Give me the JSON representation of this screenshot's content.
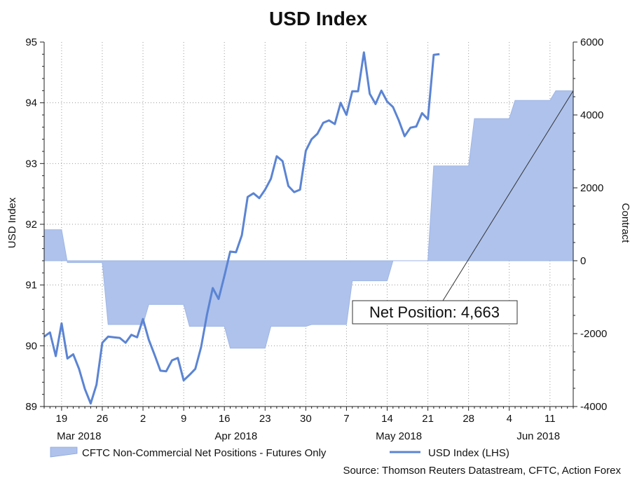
{
  "chart_data": {
    "type": "line",
    "title": "USD Index",
    "ylabel_left": "USD Index",
    "ylabel_right": "Contract",
    "ylim_left": [
      89,
      95
    ],
    "ylim_right": [
      -4000,
      6000
    ],
    "left_ticks": [
      "95",
      "94",
      "93",
      "92",
      "91",
      "90",
      "89"
    ],
    "right_ticks": [
      "6000",
      "4000",
      "2000",
      "0",
      "-2000",
      "-4000"
    ],
    "x_start": "2018-03-16",
    "x_end": "2018-06-15",
    "x_tick_labels": [
      {
        "label": "19",
        "date": "2018-03-19"
      },
      {
        "label": "26",
        "date": "2018-03-26"
      },
      {
        "label": "2",
        "date": "2018-04-02"
      },
      {
        "label": "9",
        "date": "2018-04-09"
      },
      {
        "label": "16",
        "date": "2018-04-16"
      },
      {
        "label": "23",
        "date": "2018-04-23"
      },
      {
        "label": "30",
        "date": "2018-04-30"
      },
      {
        "label": "7",
        "date": "2018-05-07"
      },
      {
        "label": "14",
        "date": "2018-05-14"
      },
      {
        "label": "21",
        "date": "2018-05-21"
      },
      {
        "label": "28",
        "date": "2018-05-28"
      },
      {
        "label": "4",
        "date": "2018-06-04"
      },
      {
        "label": "11",
        "date": "2018-06-11"
      }
    ],
    "month_labels": [
      {
        "label": "Mar 2018",
        "date": "2018-03-22"
      },
      {
        "label": "Apr 2018",
        "date": "2018-04-18"
      },
      {
        "label": "May 2018",
        "date": "2018-05-16"
      },
      {
        "label": "Jun 2018",
        "date": "2018-06-09"
      }
    ],
    "series": [
      {
        "name": "CFTC Non-Commercial Net Positions - Futures Only",
        "axis": "right",
        "kind": "step-area",
        "color": "#aec2ec",
        "points": [
          [
            "2018-03-16",
            850
          ],
          [
            "2018-03-19",
            850
          ],
          [
            "2018-03-20",
            -50
          ],
          [
            "2018-03-26",
            -50
          ],
          [
            "2018-03-27",
            -1750
          ],
          [
            "2018-04-02",
            -1750
          ],
          [
            "2018-04-03",
            -1200
          ],
          [
            "2018-04-09",
            -1200
          ],
          [
            "2018-04-10",
            -1800
          ],
          [
            "2018-04-16",
            -1800
          ],
          [
            "2018-04-17",
            -2400
          ],
          [
            "2018-04-23",
            -2400
          ],
          [
            "2018-04-24",
            -1800
          ],
          [
            "2018-04-30",
            -1800
          ],
          [
            "2018-05-01",
            -1750
          ],
          [
            "2018-05-07",
            -1750
          ],
          [
            "2018-05-08",
            -550
          ],
          [
            "2018-05-14",
            -550
          ],
          [
            "2018-05-15",
            0
          ],
          [
            "2018-05-21",
            0
          ],
          [
            "2018-05-22",
            2600
          ],
          [
            "2018-05-28",
            2600
          ],
          [
            "2018-05-29",
            3900
          ],
          [
            "2018-06-04",
            3900
          ],
          [
            "2018-06-05",
            4400
          ],
          [
            "2018-06-11",
            4400
          ],
          [
            "2018-06-12",
            4663
          ],
          [
            "2018-06-15",
            4663
          ]
        ]
      },
      {
        "name": "USD Index (LHS)",
        "axis": "left",
        "kind": "line",
        "color": "#5b84d3",
        "points": [
          [
            "2018-03-16",
            90.15
          ],
          [
            "2018-03-17",
            90.22
          ],
          [
            "2018-03-18",
            89.83
          ],
          [
            "2018-03-19",
            90.37
          ],
          [
            "2018-03-20",
            89.79
          ],
          [
            "2018-03-21",
            89.86
          ],
          [
            "2018-03-22",
            89.62
          ],
          [
            "2018-03-23",
            89.29
          ],
          [
            "2018-03-24",
            89.05
          ],
          [
            "2018-03-25",
            89.36
          ],
          [
            "2018-03-26",
            90.05
          ],
          [
            "2018-03-27",
            90.15
          ],
          [
            "2018-03-28",
            90.14
          ],
          [
            "2018-03-29",
            90.13
          ],
          [
            "2018-03-30",
            90.05
          ],
          [
            "2018-03-31",
            90.18
          ],
          [
            "2018-04-01",
            90.14
          ],
          [
            "2018-04-02",
            90.44
          ],
          [
            "2018-04-03",
            90.1
          ],
          [
            "2018-04-04",
            89.85
          ],
          [
            "2018-04-05",
            89.59
          ],
          [
            "2018-04-06",
            89.58
          ],
          [
            "2018-04-07",
            89.76
          ],
          [
            "2018-04-08",
            89.8
          ],
          [
            "2018-04-09",
            89.43
          ],
          [
            "2018-04-10",
            89.52
          ],
          [
            "2018-04-11",
            89.62
          ],
          [
            "2018-04-12",
            89.98
          ],
          [
            "2018-04-13",
            90.51
          ],
          [
            "2018-04-14",
            90.95
          ],
          [
            "2018-04-15",
            90.77
          ],
          [
            "2018-04-16",
            91.15
          ],
          [
            "2018-04-17",
            91.55
          ],
          [
            "2018-04-18",
            91.54
          ],
          [
            "2018-04-19",
            91.82
          ],
          [
            "2018-04-20",
            92.45
          ],
          [
            "2018-04-21",
            92.51
          ],
          [
            "2018-04-22",
            92.43
          ],
          [
            "2018-04-23",
            92.57
          ],
          [
            "2018-04-24",
            92.75
          ],
          [
            "2018-04-25",
            93.12
          ],
          [
            "2018-04-26",
            93.04
          ],
          [
            "2018-04-27",
            92.63
          ],
          [
            "2018-04-28",
            92.53
          ],
          [
            "2018-04-29",
            92.57
          ],
          [
            "2018-04-30",
            93.21
          ],
          [
            "2018-05-01",
            93.4
          ],
          [
            "2018-05-02",
            93.49
          ],
          [
            "2018-05-03",
            93.67
          ],
          [
            "2018-05-04",
            93.71
          ],
          [
            "2018-05-05",
            93.65
          ],
          [
            "2018-05-06",
            94.0
          ],
          [
            "2018-05-07",
            93.8
          ],
          [
            "2018-05-08",
            94.19
          ],
          [
            "2018-05-09",
            94.19
          ],
          [
            "2018-05-10",
            94.83
          ],
          [
            "2018-05-11",
            94.15
          ],
          [
            "2018-05-12",
            93.98
          ],
          [
            "2018-05-13",
            94.2
          ],
          [
            "2018-05-14",
            94.02
          ],
          [
            "2018-05-15",
            93.93
          ],
          [
            "2018-05-16",
            93.71
          ],
          [
            "2018-05-17",
            93.45
          ],
          [
            "2018-05-18",
            93.59
          ],
          [
            "2018-05-19",
            93.61
          ],
          [
            "2018-05-20",
            93.83
          ],
          [
            "2018-05-21",
            93.73
          ],
          [
            "2018-05-22",
            94.79
          ],
          [
            "2018-05-23",
            94.8
          ]
        ]
      }
    ],
    "annotation": {
      "text": "Net Position: 4,663",
      "date": "2018-06-15",
      "value": 4663,
      "axis": "right"
    }
  },
  "legend": {
    "area_label": "CFTC Non-Commercial Net Positions - Futures Only",
    "line_label": "USD Index (LHS)"
  },
  "source": "Source: Thomson Reuters Datastream, CFTC, Action Forex"
}
